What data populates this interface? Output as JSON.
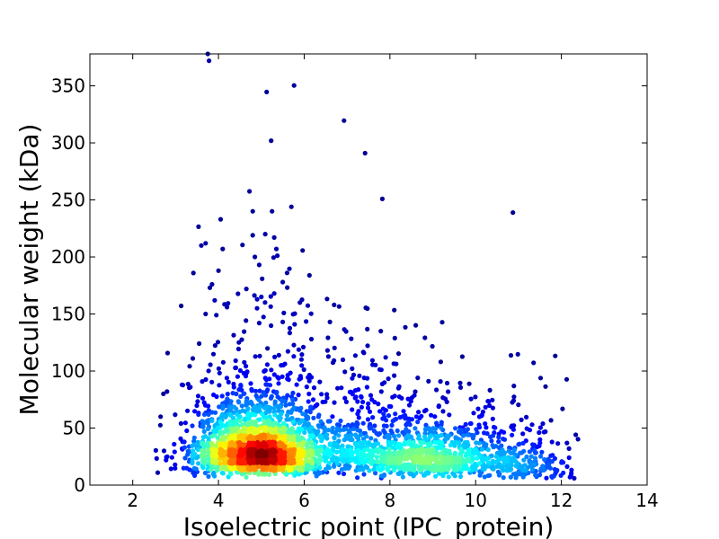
{
  "chart_data": {
    "type": "scatter",
    "title": "",
    "xlabel": "Isoelectric point (IPC_protein)",
    "ylabel": "Molecular weight (kDa)",
    "xlim": [
      1,
      14
    ],
    "ylim": [
      0,
      378
    ],
    "xticks": [
      2,
      4,
      6,
      8,
      10,
      12,
      14
    ],
    "yticks": [
      0,
      50,
      100,
      150,
      200,
      250,
      300,
      350
    ],
    "grid": false,
    "legend": "none",
    "colormap": "jet (point density: blue = low, red = high)",
    "density_peak": {
      "x": 4.9,
      "y": 22
    },
    "point_count_estimate": 3500,
    "clusters": [
      {
        "center_x": 4.9,
        "center_y": 26,
        "spread_x": 0.75,
        "spread_y": 18,
        "weight": 0.55
      },
      {
        "center_x": 8.6,
        "center_y": 22,
        "spread_x": 0.9,
        "spread_y": 14,
        "weight": 0.2
      },
      {
        "center_x": 10.6,
        "center_y": 18,
        "spread_x": 0.9,
        "spread_y": 12,
        "weight": 0.1
      },
      {
        "center_x": 6.6,
        "center_y": 38,
        "spread_x": 1.3,
        "spread_y": 25,
        "weight": 0.15
      }
    ],
    "outlier_points": [
      [
        3.75,
        378
      ],
      [
        3.78,
        372
      ],
      [
        4.05,
        233
      ],
      [
        4.8,
        240
      ],
      [
        5.25,
        240
      ],
      [
        5.7,
        244
      ],
      [
        3.6,
        210
      ],
      [
        3.7,
        212
      ],
      [
        4.1,
        207
      ],
      [
        4.8,
        219
      ],
      [
        5.35,
        207
      ],
      [
        5.3,
        217
      ],
      [
        4.85,
        200
      ],
      [
        4.95,
        193
      ],
      [
        4.0,
        188
      ],
      [
        5.6,
        186
      ],
      [
        3.85,
        176
      ],
      [
        3.8,
        173
      ],
      [
        4.65,
        172
      ],
      [
        5.0,
        165
      ],
      [
        4.2,
        156
      ],
      [
        5.5,
        178
      ],
      [
        5.3,
        168
      ],
      [
        5.9,
        160
      ],
      [
        3.7,
        150
      ],
      [
        3.95,
        149
      ],
      [
        6.7,
        158
      ],
      [
        6.6,
        143
      ],
      [
        5.5,
        143
      ],
      [
        4.9,
        155
      ],
      [
        3.55,
        124
      ],
      [
        2.65,
        60
      ],
      [
        2.8,
        82
      ],
      [
        3.4,
        111
      ],
      [
        3.15,
        88
      ],
      [
        7.9,
        112
      ],
      [
        7.8,
        101
      ],
      [
        8.1,
        96
      ],
      [
        8.65,
        94
      ],
      [
        8.9,
        91
      ],
      [
        7.4,
        94
      ],
      [
        8.2,
        85
      ],
      [
        12.2,
        7
      ],
      [
        12.3,
        6
      ],
      [
        11.9,
        13
      ],
      [
        11.5,
        37
      ],
      [
        11.1,
        45
      ],
      [
        10.4,
        58
      ]
    ]
  }
}
